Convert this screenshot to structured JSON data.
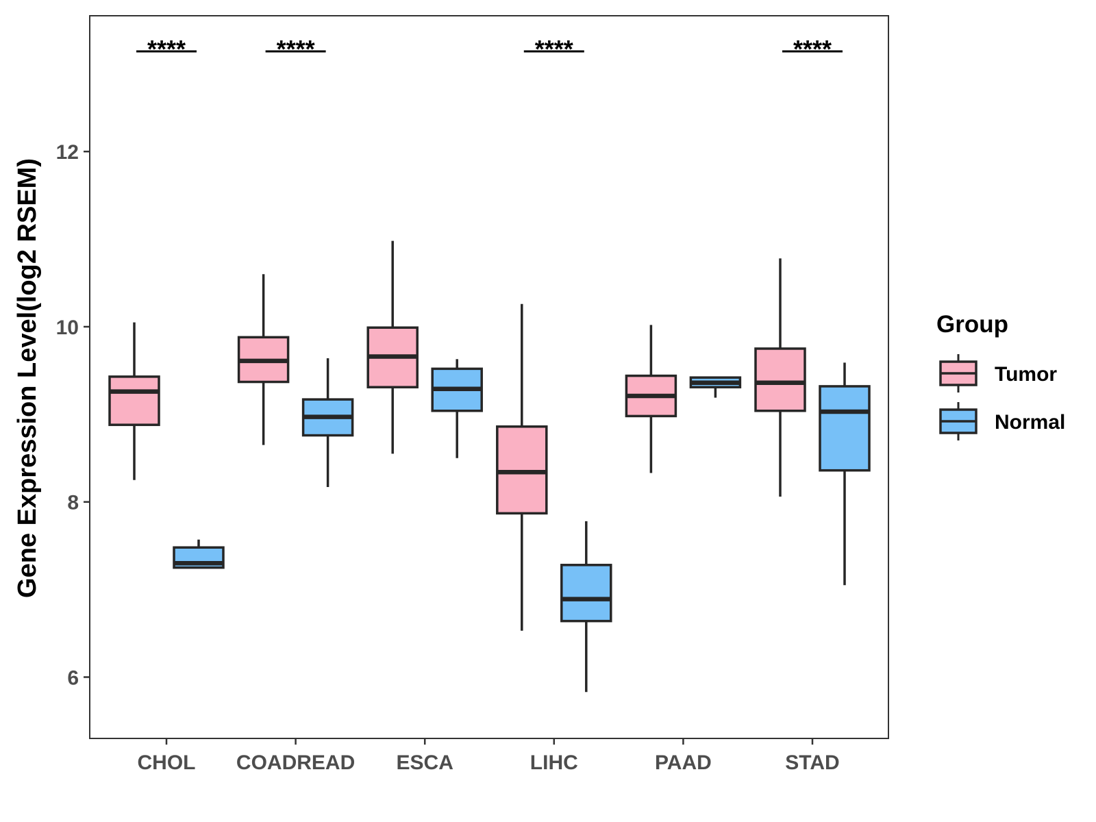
{
  "chart_data": {
    "type": "boxplot",
    "title": "",
    "xlabel": "",
    "ylabel": "Gene Expression Level(log2 RSEM)",
    "ylim": [
      5.3,
      13.55
    ],
    "yticks": [
      6,
      8,
      10,
      12
    ],
    "grid": false,
    "legend": {
      "title": "Group",
      "position": "right",
      "entries": [
        {
          "name": "Tumor",
          "color": "#FAB1C3"
        },
        {
          "name": "Normal",
          "color": "#77C0F7"
        }
      ]
    },
    "categories": [
      "CHOL",
      "COADREAD",
      "ESCA",
      "LIHC",
      "PAAD",
      "STAD"
    ],
    "series": [
      {
        "name": "Tumor",
        "color": "#FAB1C3",
        "boxes": [
          {
            "category": "CHOL",
            "whisker_low": 8.25,
            "q1": 8.88,
            "median": 9.26,
            "q3": 9.43,
            "whisker_high": 10.05
          },
          {
            "category": "COADREAD",
            "whisker_low": 8.65,
            "q1": 9.37,
            "median": 9.61,
            "q3": 9.88,
            "whisker_high": 10.6
          },
          {
            "category": "ESCA",
            "whisker_low": 8.55,
            "q1": 9.31,
            "median": 9.66,
            "q3": 9.99,
            "whisker_high": 10.98
          },
          {
            "category": "LIHC",
            "whisker_low": 6.53,
            "q1": 7.87,
            "median": 8.34,
            "q3": 8.86,
            "whisker_high": 10.26
          },
          {
            "category": "PAAD",
            "whisker_low": 8.33,
            "q1": 8.98,
            "median": 9.21,
            "q3": 9.44,
            "whisker_high": 10.02
          },
          {
            "category": "STAD",
            "whisker_low": 8.06,
            "q1": 9.04,
            "median": 9.36,
            "q3": 9.75,
            "whisker_high": 10.78
          }
        ]
      },
      {
        "name": "Normal",
        "color": "#77C0F7",
        "boxes": [
          {
            "category": "CHOL",
            "whisker_low": 7.25,
            "q1": 7.25,
            "median": 7.3,
            "q3": 7.48,
            "whisker_high": 7.57
          },
          {
            "category": "COADREAD",
            "whisker_low": 8.17,
            "q1": 8.76,
            "median": 8.97,
            "q3": 9.17,
            "whisker_high": 9.64
          },
          {
            "category": "ESCA",
            "whisker_low": 8.5,
            "q1": 9.04,
            "median": 9.29,
            "q3": 9.52,
            "whisker_high": 9.63
          },
          {
            "category": "LIHC",
            "whisker_low": 5.83,
            "q1": 6.64,
            "median": 6.89,
            "q3": 7.28,
            "whisker_high": 7.78
          },
          {
            "category": "PAAD",
            "whisker_low": 9.19,
            "q1": 9.31,
            "median": 9.36,
            "q3": 9.42,
            "whisker_high": 9.42
          },
          {
            "category": "STAD",
            "whisker_low": 7.05,
            "q1": 8.36,
            "median": 9.03,
            "q3": 9.32,
            "whisker_high": 9.59
          }
        ]
      }
    ],
    "annotations": [
      {
        "category": "CHOL",
        "label": "****"
      },
      {
        "category": "COADREAD",
        "label": "****"
      },
      {
        "category": "LIHC",
        "label": "****"
      },
      {
        "category": "STAD",
        "label": "****"
      }
    ]
  }
}
